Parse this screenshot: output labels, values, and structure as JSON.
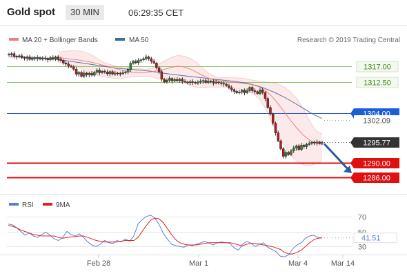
{
  "header": {
    "title": "Gold spot",
    "timeframe": "30 MIN",
    "time": "06:29:35 CET"
  },
  "legend": {
    "bb": {
      "label": "MA 20 + Bollinger Bands",
      "color": "#f08080"
    },
    "ma50": {
      "label": "MA 50",
      "color": "#3a6ea5"
    },
    "rsi": {
      "label": "RSI",
      "color": "#5b7fd6"
    },
    "rsi_ma": {
      "label": "9MA",
      "color": "#e02020"
    }
  },
  "attribution": "Research © 2019 Trading Central",
  "chart_data": [
    {
      "type": "candlestick",
      "ylim": [
        1282,
        1322
      ],
      "x_labels": [
        "Feb 28",
        "Mar 1",
        "Mar 4",
        "Mar 14"
      ],
      "levels": [
        {
          "label": "1317.00",
          "value": 1317.0,
          "kind": "resistance",
          "color": "#8cc96a",
          "label_bg": "#f3f9ee",
          "label_color": "#3c8a1c"
        },
        {
          "label": "1312.50",
          "value": 1312.5,
          "kind": "resistance",
          "color": "#8cc96a",
          "label_bg": "#f3f9ee",
          "label_color": "#3c8a1c"
        },
        {
          "label": "1304.00",
          "value": 1304.0,
          "kind": "pivot",
          "color": "#2a5cd6",
          "label_bg": "#1a5fd9",
          "label_color": "#ffffff"
        },
        {
          "label": "1302.09",
          "value": 1302.09,
          "kind": "ma50",
          "color": "#888888",
          "label_bg": "#ffffff",
          "label_color": "#555555"
        },
        {
          "label": "1295.77",
          "value": 1295.77,
          "kind": "last",
          "color": "#333333",
          "label_bg": "#333333",
          "label_color": "#ffffff"
        },
        {
          "label": "1290.00",
          "value": 1290.0,
          "kind": "support",
          "color": "#e01010",
          "label_bg": "#e01010",
          "label_color": "#ffffff"
        },
        {
          "label": "1286.00",
          "value": 1286.0,
          "kind": "support",
          "color": "#e01010",
          "label_bg": "#e01010",
          "label_color": "#ffffff"
        }
      ],
      "closes": [
        1320.2,
        1320.5,
        1319.8,
        1319.6,
        1319.9,
        1319.4,
        1319.2,
        1319.5,
        1318.9,
        1319.3,
        1319.1,
        1319.4,
        1319.0,
        1319.3,
        1319.2,
        1318.8,
        1319.4,
        1319.1,
        1319.6,
        1319.0,
        1318.6,
        1317.9,
        1317.6,
        1317.1,
        1316.8,
        1316.2,
        1314.8,
        1315.3,
        1314.2,
        1315.1,
        1314.6,
        1315.0,
        1314.5,
        1315.3,
        1315.9,
        1315.2,
        1315.6,
        1315.4,
        1314.9,
        1315.5,
        1314.8,
        1315.1,
        1315.0,
        1314.9,
        1315.2,
        1315.4,
        1316.1,
        1317.8,
        1318.4,
        1318.0,
        1318.6,
        1318.8,
        1319.1,
        1319.6,
        1319.1,
        1318.4,
        1317.9,
        1316.6,
        1315.5,
        1313.4,
        1312.6,
        1313.1,
        1313.6,
        1312.9,
        1313.3,
        1313.0,
        1313.4,
        1312.8,
        1312.6,
        1312.4,
        1312.7,
        1312.5,
        1312.3,
        1312.6,
        1312.8,
        1313.0,
        1312.5,
        1312.9,
        1312.8,
        1312.3,
        1312.6,
        1312.4,
        1312.2,
        1312.0,
        1311.6,
        1311.0,
        1310.5,
        1310.0,
        1309.6,
        1309.8,
        1310.3,
        1309.6,
        1310.2,
        1311.1,
        1310.2,
        1309.9,
        1309.4,
        1310.4,
        1309.7,
        1308.0,
        1305.5,
        1303.7,
        1301.1,
        1298.4,
        1296.2,
        1294.0,
        1291.9,
        1293.0,
        1292.4,
        1293.4,
        1294.2,
        1294.8,
        1293.8,
        1295.0,
        1294.6,
        1295.2,
        1295.5,
        1295.8,
        1295.6,
        1295.9,
        1295.5,
        1295.77
      ],
      "ma20": [
        1319.4,
        1319.2,
        1319.0,
        1318.8,
        1318.5,
        1318.2,
        1317.8,
        1317.3,
        1316.9,
        1316.4,
        1315.9,
        1315.5,
        1315.3,
        1315.2,
        1315.3,
        1315.5,
        1315.8,
        1316.2,
        1316.7,
        1317.0,
        1316.8,
        1316.2,
        1315.3,
        1314.4,
        1313.6,
        1313.1,
        1312.8,
        1312.6,
        1312.5,
        1312.3,
        1312.1,
        1311.8,
        1311.2,
        1310.2,
        1308.6,
        1306.5,
        1304.2,
        1301.8,
        1299.7,
        1297.8,
        1296.4,
        1295.6,
        1295.2
      ],
      "bb_upper": [
        1321.0,
        1321.2,
        1321.3,
        1321.3,
        1321.0,
        1320.4,
        1319.3,
        1318.2,
        1317.6,
        1317.1,
        1316.7,
        1316.6,
        1316.4,
        1316.3,
        1316.2,
        1316.6,
        1317.7,
        1318.6,
        1319.5,
        1320.0,
        1319.8,
        1319.2,
        1318.0,
        1316.4,
        1314.9,
        1314.1,
        1313.8,
        1313.8,
        1313.8,
        1313.7,
        1313.5,
        1313.1,
        1312.8,
        1312.6,
        1312.5,
        1312.0,
        1311.1,
        1309.8,
        1307.9,
        1305.2,
        1301.7,
        1299.1,
        1298.0
      ],
      "bb_lower": [
        1318.1,
        1317.8,
        1317.5,
        1317.0,
        1315.9,
        1315.1,
        1314.5,
        1314.1,
        1313.8,
        1313.6,
        1313.6,
        1313.9,
        1314.1,
        1314.2,
        1314.2,
        1314.0,
        1313.4,
        1313.2,
        1313.1,
        1313.0,
        1312.6,
        1311.6,
        1311.1,
        1311.1,
        1311.2,
        1311.2,
        1311.2,
        1311.2,
        1311.0,
        1310.6,
        1310.1,
        1309.3,
        1307.9,
        1305.1,
        1301.3,
        1297.6,
        1294.8,
        1292.4,
        1290.4,
        1289.5,
        1289.2,
        1289.8,
        1290.6
      ],
      "ma50": [
        1319.6,
        1319.6,
        1319.6,
        1319.4,
        1319.2,
        1318.9,
        1318.6,
        1318.2,
        1317.8,
        1317.4,
        1317.0,
        1316.6,
        1316.3,
        1316.1,
        1315.9,
        1315.6,
        1315.2,
        1314.8,
        1314.5,
        1314.2,
        1313.9,
        1313.6,
        1313.3,
        1313.0,
        1312.7,
        1312.3,
        1311.7,
        1310.8,
        1309.7,
        1308.4,
        1306.9,
        1305.3,
        1303.7,
        1302.4
      ]
    },
    {
      "type": "line",
      "name": "RSI",
      "ylim": [
        20,
        80
      ],
      "levels": [
        70,
        50,
        30
      ],
      "current": "41.51",
      "rsi": [
        60,
        59,
        55,
        50,
        45,
        48,
        44,
        42,
        46,
        49,
        45,
        40,
        38,
        42,
        50,
        46,
        44,
        47,
        42,
        36,
        32,
        30,
        33,
        38,
        35,
        34,
        38,
        36,
        40,
        37,
        44,
        60,
        66,
        70,
        72,
        68,
        60,
        48,
        40,
        33,
        31,
        30,
        29,
        32,
        31,
        33,
        35,
        37,
        34,
        32,
        35,
        36,
        35,
        34,
        28,
        25,
        33,
        37,
        34,
        30,
        33,
        35,
        29,
        26,
        23,
        17,
        16,
        19,
        27,
        32,
        35,
        41,
        44,
        45,
        42,
        41.51
      ],
      "ma9": [
        58,
        57,
        55,
        52,
        50,
        48,
        46,
        45,
        44,
        44,
        44,
        44,
        42,
        41,
        42,
        43,
        43,
        44,
        44,
        42,
        40,
        38,
        37,
        36,
        36,
        36,
        36,
        37,
        38,
        38,
        38,
        42,
        50,
        58,
        65,
        68,
        67,
        62,
        54,
        46,
        39,
        35,
        33,
        32,
        32,
        32,
        33,
        34,
        35,
        35,
        35,
        35,
        35,
        35,
        34,
        32,
        31,
        33,
        34,
        34,
        33,
        32,
        31,
        30,
        28,
        26,
        22,
        20,
        20,
        22,
        25,
        30,
        35,
        39,
        41,
        41.6
      ]
    }
  ]
}
